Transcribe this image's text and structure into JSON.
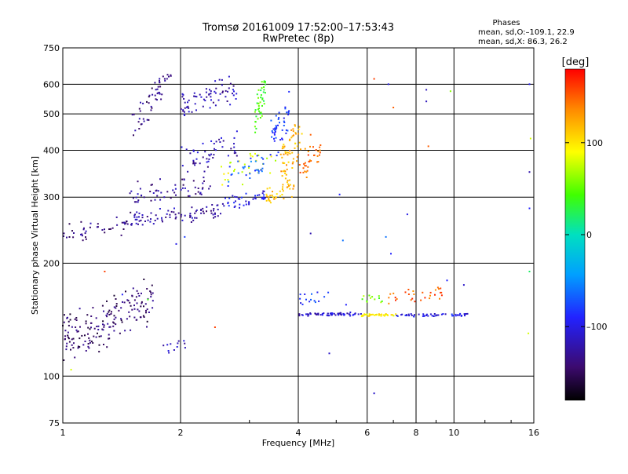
{
  "chart_data": {
    "type": "scatter",
    "title": "Tromsø 20161009 17:52:00–17:53:43",
    "subtitle": "RwPretec (8p)",
    "xlabel": "Frequency [MHz]",
    "ylabel": "Stationary phase Virtual Height [km]",
    "x_scale": "log",
    "y_scale": "log",
    "xlim": [
      1,
      16
    ],
    "ylim": [
      75,
      750
    ],
    "x_ticks": [
      1,
      2,
      4,
      6,
      8,
      10,
      16
    ],
    "x_tick_labels": [
      "1",
      "2",
      "4",
      "6",
      "8",
      "10",
      "16"
    ],
    "y_ticks": [
      75,
      100,
      200,
      300,
      400,
      500,
      600,
      750
    ],
    "y_tick_labels": [
      "75",
      "100",
      "200",
      "300",
      "400",
      "500",
      "600",
      "750"
    ],
    "grid": true,
    "stats": {
      "heading": "Phases",
      "line1": "mean, sd,O:–109.1, 22.9",
      "line2": "mean, sd,X:  86.3, 26.2"
    },
    "colorbar": {
      "unit": "[deg]",
      "range": [
        -180,
        180
      ],
      "ticks": [
        -100,
        0,
        100
      ],
      "tick_labels": [
        "–100",
        "0",
        "100"
      ]
    },
    "traces": [
      {
        "f0": 1.0,
        "f1": 1.5,
        "h0": 230,
        "h1": 265,
        "phase": -135,
        "n": 45,
        "jit": 0.04
      },
      {
        "f0": 1.5,
        "f1": 2.6,
        "h0": 255,
        "h1": 285,
        "phase": -125,
        "n": 85,
        "jit": 0.03
      },
      {
        "f0": 2.6,
        "f1": 3.3,
        "h0": 280,
        "h1": 310,
        "phase": -100,
        "n": 40,
        "jit": 0.03
      },
      {
        "f0": 1.4,
        "f1": 2.4,
        "h0": 290,
        "h1": 340,
        "phase": -130,
        "n": 60,
        "jit": 0.05
      },
      {
        "f0": 2.0,
        "f1": 2.8,
        "h0": 350,
        "h1": 440,
        "phase": -120,
        "n": 50,
        "jit": 0.05
      },
      {
        "f0": 1.5,
        "f1": 1.8,
        "h0": 440,
        "h1": 620,
        "phase": -138,
        "n": 40,
        "jit": 0.06
      },
      {
        "f0": 2.0,
        "f1": 2.8,
        "h0": 500,
        "h1": 620,
        "phase": -120,
        "n": 70,
        "jit": 0.04
      },
      {
        "f0": 1.7,
        "f1": 1.9,
        "h0": 610,
        "h1": 640,
        "phase": -135,
        "n": 12,
        "jit": 0.02
      },
      {
        "f0": 3.1,
        "f1": 3.3,
        "h0": 450,
        "h1": 650,
        "phase": 40,
        "n": 45,
        "jit": 0.04
      },
      {
        "f0": 3.4,
        "f1": 3.8,
        "h0": 380,
        "h1": 560,
        "phase": -85,
        "n": 45,
        "jit": 0.05
      },
      {
        "f0": 3.6,
        "f1": 4.1,
        "h0": 320,
        "h1": 500,
        "phase": 120,
        "n": 60,
        "jit": 0.05
      },
      {
        "f0": 3.3,
        "f1": 3.9,
        "h0": 290,
        "h1": 330,
        "phase": 115,
        "n": 40,
        "jit": 0.03
      },
      {
        "f0": 4.0,
        "f1": 4.6,
        "h0": 340,
        "h1": 420,
        "phase": 145,
        "n": 35,
        "jit": 0.05
      },
      {
        "f0": 2.5,
        "f1": 3.5,
        "h0": 320,
        "h1": 400,
        "phase": 85,
        "n": 30,
        "jit": 0.05
      },
      {
        "f0": 2.6,
        "f1": 3.4,
        "h0": 330,
        "h1": 380,
        "phase": -70,
        "n": 30,
        "jit": 0.05
      },
      {
        "f0": 1.0,
        "f1": 1.7,
        "h0": 112,
        "h1": 175,
        "phase": -145,
        "n": 180,
        "jit": 0.06
      },
      {
        "f0": 1.8,
        "f1": 2.1,
        "h0": 114,
        "h1": 126,
        "phase": -120,
        "n": 12,
        "jit": 0.04
      },
      {
        "f0": 4.0,
        "f1": 5.8,
        "h0": 145,
        "h1": 147,
        "phase": -110,
        "n": 60,
        "jit": 0.008
      },
      {
        "f0": 5.8,
        "f1": 7.1,
        "h0": 145,
        "h1": 146,
        "phase": 100,
        "n": 35,
        "jit": 0.006
      },
      {
        "f0": 7.1,
        "f1": 11.0,
        "h0": 145,
        "h1": 146,
        "phase": -100,
        "n": 50,
        "jit": 0.008
      },
      {
        "f0": 4.0,
        "f1": 4.8,
        "h0": 158,
        "h1": 165,
        "phase": -85,
        "n": 15,
        "jit": 0.03
      },
      {
        "f0": 5.8,
        "f1": 6.6,
        "h0": 158,
        "h1": 166,
        "phase": 55,
        "n": 12,
        "jit": 0.03
      },
      {
        "f0": 6.8,
        "f1": 9.4,
        "h0": 158,
        "h1": 170,
        "phase": 150,
        "n": 30,
        "jit": 0.03
      }
    ],
    "scatter_points": [
      {
        "f": 6.25,
        "h": 90,
        "phase": -110
      },
      {
        "f": 6.25,
        "h": 620,
        "phase": 160
      },
      {
        "f": 7.6,
        "h": 270,
        "phase": -100
      },
      {
        "f": 6.7,
        "h": 235,
        "phase": -60
      },
      {
        "f": 6.9,
        "h": 212,
        "phase": -90
      },
      {
        "f": 8.5,
        "h": 580,
        "phase": -115
      },
      {
        "f": 8.5,
        "h": 540,
        "phase": -115
      },
      {
        "f": 9.6,
        "h": 180,
        "phase": -90
      },
      {
        "f": 10.6,
        "h": 175,
        "phase": -110
      },
      {
        "f": 15.6,
        "h": 600,
        "phase": -100
      },
      {
        "f": 15.7,
        "h": 430,
        "phase": 80
      },
      {
        "f": 15.6,
        "h": 350,
        "phase": -120
      },
      {
        "f": 15.6,
        "h": 280,
        "phase": -90
      },
      {
        "f": 15.6,
        "h": 190,
        "phase": 20
      },
      {
        "f": 15.5,
        "h": 130,
        "phase": 80
      },
      {
        "f": 5.1,
        "h": 305,
        "phase": -90
      },
      {
        "f": 5.2,
        "h": 230,
        "phase": -60
      },
      {
        "f": 4.8,
        "h": 115,
        "phase": -110
      },
      {
        "f": 1.95,
        "h": 225,
        "phase": -100
      },
      {
        "f": 2.05,
        "h": 235,
        "phase": -80
      },
      {
        "f": 2.45,
        "h": 135,
        "phase": 160
      },
      {
        "f": 1.28,
        "h": 190,
        "phase": 160
      },
      {
        "f": 1.42,
        "h": 165,
        "phase": -90
      },
      {
        "f": 1.65,
        "h": 160,
        "phase": 40
      },
      {
        "f": 1.05,
        "h": 104,
        "phase": 80
      },
      {
        "f": 8.6,
        "h": 410,
        "phase": 150
      },
      {
        "f": 9.8,
        "h": 575,
        "phase": 60
      },
      {
        "f": 4.3,
        "h": 440,
        "phase": 150
      },
      {
        "f": 7.0,
        "h": 520,
        "phase": 150
      },
      {
        "f": 6.8,
        "h": 600,
        "phase": -100
      },
      {
        "f": 4.3,
        "h": 240,
        "phase": -120
      },
      {
        "f": 5.3,
        "h": 155,
        "phase": -90
      }
    ]
  }
}
